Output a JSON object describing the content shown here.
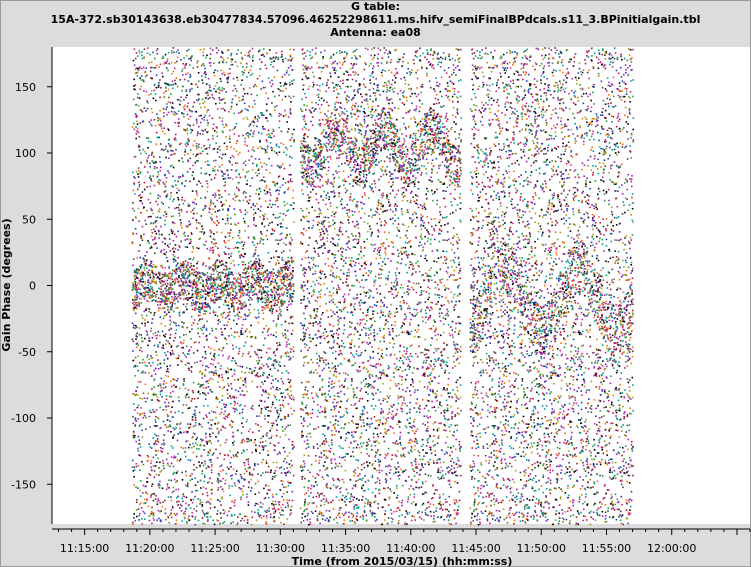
{
  "window": {
    "title_lines": [
      "G table:",
      "15A-372.sb30143638.eb30477834.57096.46252298611.ms.hifv_semiFinalBPdcals.s11_3.BPinitialgain.tbl",
      "Antenna: ea08"
    ]
  },
  "chart_data": {
    "type": "scatter",
    "title": "G table: 15A-372.sb30143638.eb30477834.57096.46252298611.ms.hifv_semiFinalBPdcals.s11_3.BPinitialgain.tbl Antenna: ea08",
    "xlabel": "Time (from 2015/03/15) (hh:mm:ss)",
    "ylabel": "Gain Phase (degrees)",
    "x_unit": "minutes after 11:00:00 UT",
    "xlim": [
      12.5,
      66.0
    ],
    "ylim": [
      -180,
      180
    ],
    "x_ticks": [
      {
        "value": 15,
        "label": "11:15:00"
      },
      {
        "value": 20,
        "label": "11:20:00"
      },
      {
        "value": 25,
        "label": "11:25:00"
      },
      {
        "value": 30,
        "label": "11:30:00"
      },
      {
        "value": 35,
        "label": "11:35:00"
      },
      {
        "value": 40,
        "label": "11:40:00"
      },
      {
        "value": 45,
        "label": "11:45:00"
      },
      {
        "value": 50,
        "label": "11:50:00"
      },
      {
        "value": 55,
        "label": "11:55:00"
      },
      {
        "value": 60,
        "label": "12:00:00"
      }
    ],
    "y_ticks": [
      {
        "value": 150,
        "label": "150"
      },
      {
        "value": 100,
        "label": "100"
      },
      {
        "value": 50,
        "label": "50"
      },
      {
        "value": 0,
        "label": "0"
      },
      {
        "value": -50,
        "label": "-50"
      },
      {
        "value": -100,
        "label": "-100"
      },
      {
        "value": -150,
        "label": "-150"
      }
    ],
    "scans": [
      {
        "start": 18.6,
        "end": 31.0
      },
      {
        "start": 31.5,
        "end": 43.8
      },
      {
        "start": 44.5,
        "end": 57.0
      }
    ],
    "palette": [
      "#000000",
      "#b2182b",
      "#1f3fbf",
      "#1f9f3f",
      "#9f1fbf",
      "#009f9f",
      "#9f9f1f",
      "#ff6f00",
      "#3f3f3f",
      "#c0308f"
    ],
    "grid": false,
    "legend": "none"
  }
}
